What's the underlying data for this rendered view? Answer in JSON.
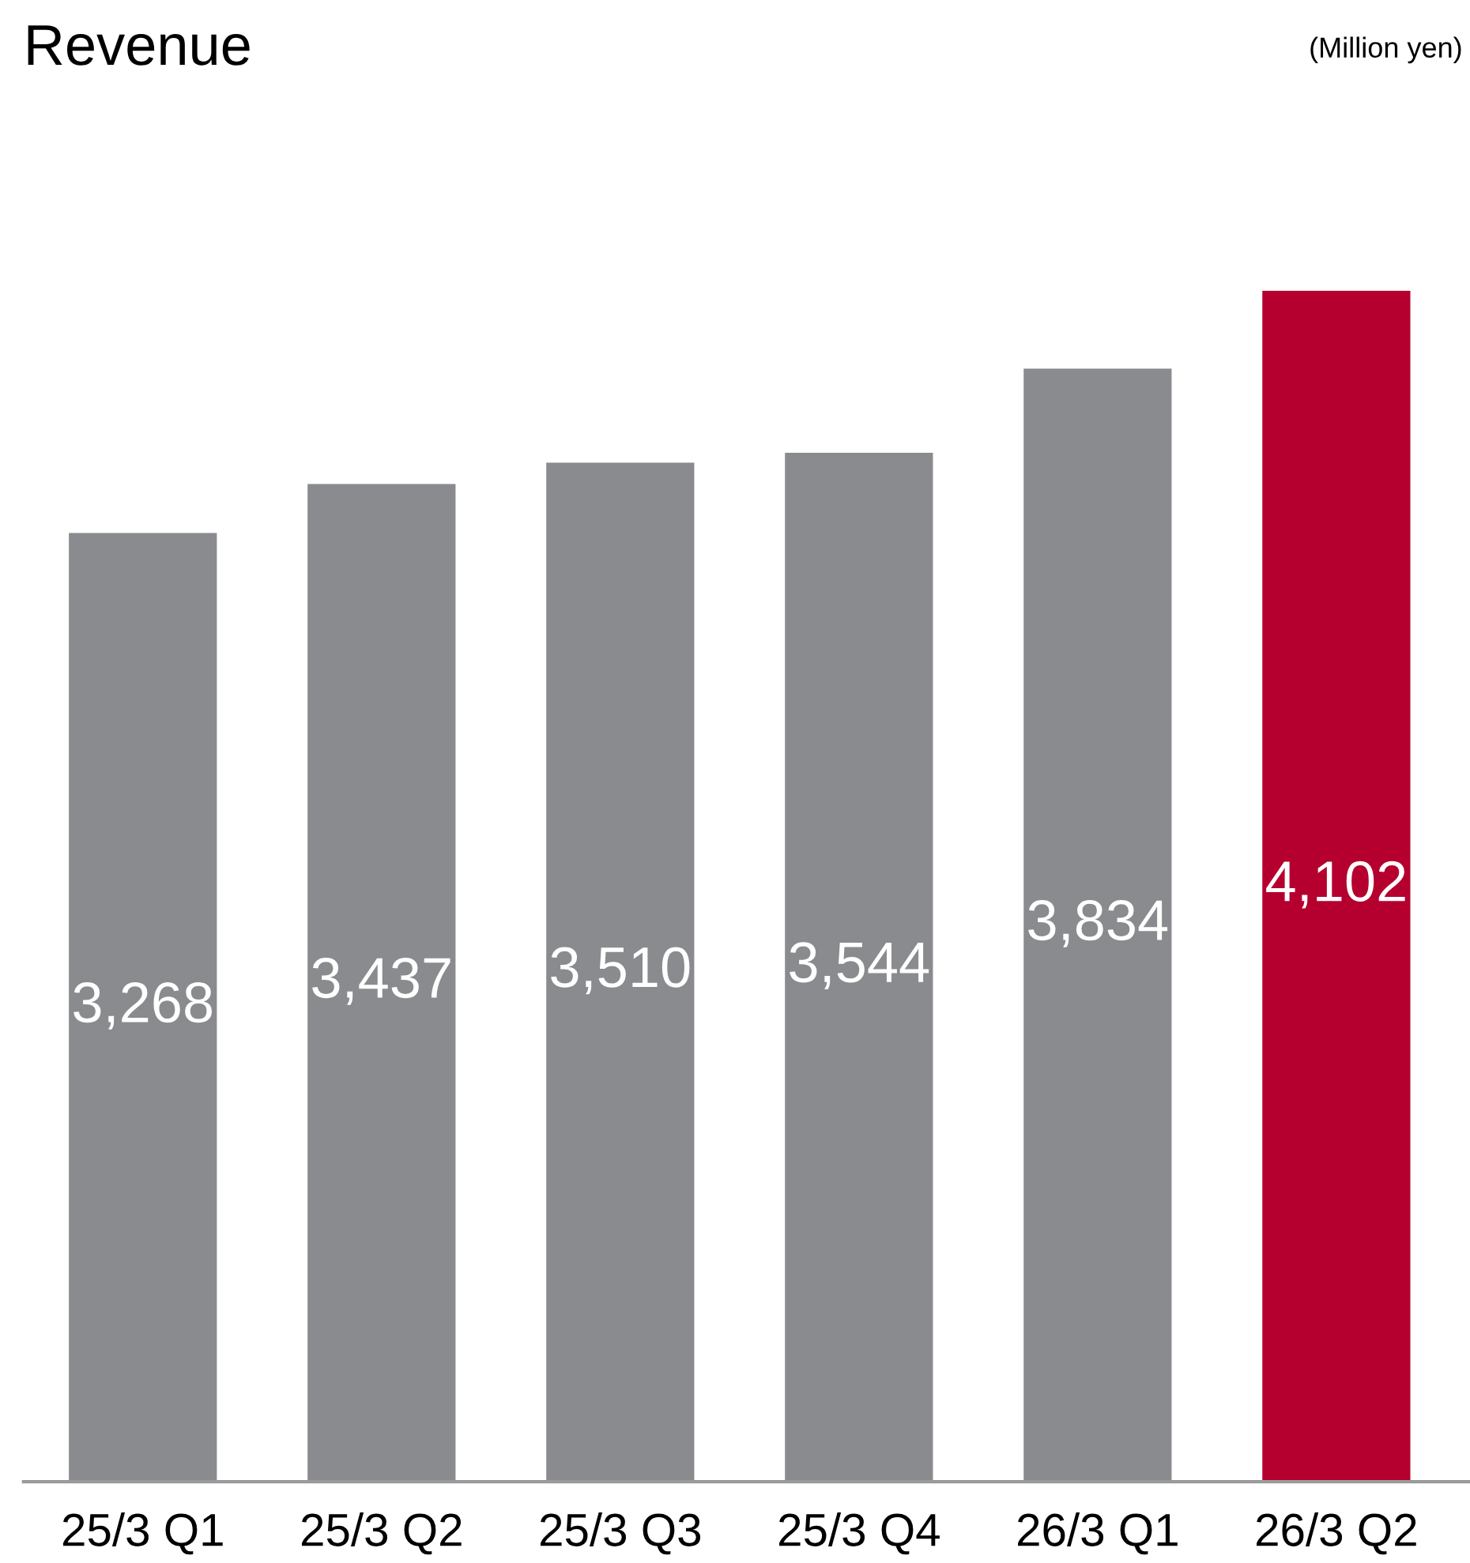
{
  "chart_data": {
    "type": "bar",
    "title": "Revenue",
    "annotations": [
      "(Million yen)"
    ],
    "categories": [
      "25/3 Q1",
      "25/3 Q2",
      "25/3 Q3",
      "25/3 Q4",
      "26/3 Q1",
      "26/3 Q2"
    ],
    "values": [
      3268,
      3437,
      3510,
      3544,
      3834,
      4102
    ],
    "colors": [
      "#898b8e",
      "#898b8e",
      "#898b8e",
      "#898b8e",
      "#898b8e",
      "#b5002f"
    ],
    "value_labels": [
      "3,268",
      "3,437",
      "3,510",
      "3,544",
      "3,834",
      "4,102"
    ],
    "grid": false,
    "legend": false
  }
}
